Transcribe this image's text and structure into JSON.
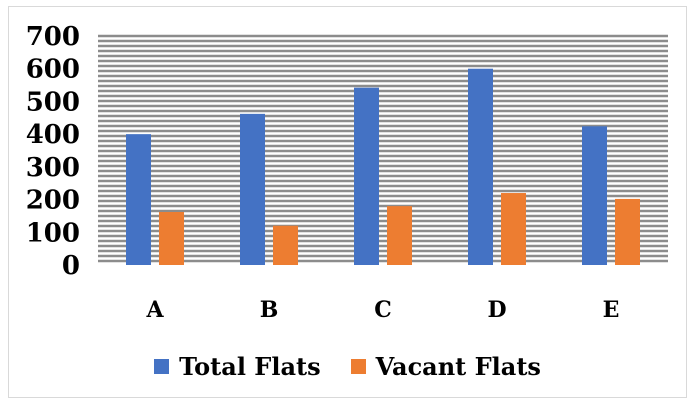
{
  "chart_data": {
    "type": "bar",
    "categories": [
      "A",
      "B",
      "C",
      "D",
      "E"
    ],
    "series": [
      {
        "name": "Total Flats",
        "values": [
          400,
          462,
          542,
          600,
          424
        ],
        "color": "#4472C4"
      },
      {
        "name": "Vacant Flats",
        "values": [
          162,
          120,
          180,
          220,
          202
        ],
        "color": "#ED7D31"
      }
    ],
    "y_ticks": [
      "0",
      "100",
      "200",
      "300",
      "400",
      "500",
      "600",
      "700"
    ],
    "ylim": [
      0,
      700
    ],
    "grid": "dense horizontal lines",
    "legend_position": "bottom"
  }
}
